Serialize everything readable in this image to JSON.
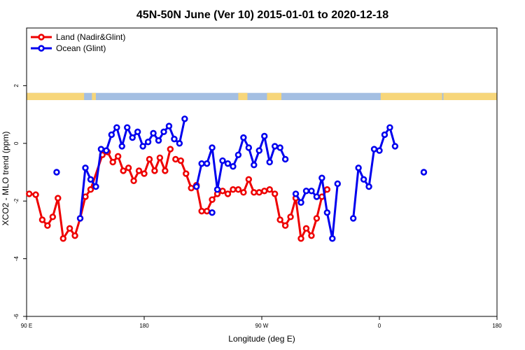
{
  "chart_data": {
    "type": "line",
    "title": "45N-50N June (Ver 10)   2015-01-01 to 2020-12-18",
    "xlabel": "Longitude (deg E)",
    "ylabel": "XCO2 - MLO trend (ppm)",
    "xlim": [
      90,
      450
    ],
    "ylim": [
      -6,
      4
    ],
    "x_ticks": [
      {
        "value": 90,
        "label": "90 E"
      },
      {
        "value": 180,
        "label": "180"
      },
      {
        "value": 270,
        "label": "90 W"
      },
      {
        "value": 360,
        "label": "0"
      },
      {
        "value": 450,
        "label": "180"
      }
    ],
    "x_tick_labels": [
      "90 E",
      "180",
      "90 W",
      "0",
      "180"
    ],
    "y_ticks": [
      -6,
      -4,
      -2,
      0,
      2
    ],
    "y_tick_labels": [
      "-6",
      "-4",
      "-2",
      "0",
      "2"
    ],
    "legend": {
      "position": "top-left",
      "entries": [
        "Land (Nadir&Glint)",
        "Ocean (Glint)"
      ]
    },
    "landmask": {
      "y_range": [
        1.5,
        1.75
      ],
      "land_color": "#f7d67a",
      "ocean_color": "#a4bfe2",
      "land_segments": [
        [
          90,
          134
        ],
        [
          140,
          143
        ],
        [
          252,
          259
        ],
        [
          274,
          285
        ],
        [
          361,
          408
        ],
        [
          409,
          451
        ]
      ]
    },
    "series": [
      {
        "name": "Land (Nadir&Glint)",
        "color": "#ee0000",
        "points": [
          [
            92,
            -1.75
          ],
          [
            97,
            -1.78
          ],
          [
            102,
            -2.65
          ],
          [
            106,
            -2.85
          ],
          [
            110,
            -2.55
          ],
          [
            114,
            -1.9
          ],
          [
            118,
            -3.3
          ],
          [
            123,
            -2.95
          ],
          [
            127,
            -3.2
          ],
          [
            131,
            -2.6
          ],
          [
            135,
            -1.85
          ],
          [
            139,
            -1.6
          ],
          [
            148,
            -0.4
          ],
          [
            152,
            -0.3
          ],
          [
            156,
            -0.65
          ],
          [
            160,
            -0.45
          ],
          [
            164,
            -0.95
          ],
          [
            168,
            -0.85
          ],
          [
            172,
            -1.3
          ],
          [
            176,
            -0.95
          ],
          [
            180,
            -1.05
          ],
          [
            184,
            -0.55
          ],
          [
            188,
            -0.95
          ],
          [
            192,
            -0.5
          ],
          [
            196,
            -0.95
          ],
          [
            200,
            -0.2
          ],
          [
            204,
            -0.55
          ],
          [
            208,
            -0.6
          ],
          [
            212,
            -1.05
          ],
          [
            216,
            -1.55
          ],
          [
            220,
            -1.45
          ],
          [
            224,
            -2.35
          ],
          [
            228,
            -2.35
          ],
          [
            232,
            -1.95
          ],
          [
            236,
            -1.75
          ],
          [
            240,
            -1.65
          ],
          [
            244,
            -1.75
          ],
          [
            248,
            -1.6
          ],
          [
            252,
            -1.6
          ],
          [
            256,
            -1.7
          ],
          [
            260,
            -1.25
          ],
          [
            264,
            -1.7
          ],
          [
            268,
            -1.7
          ],
          [
            272,
            -1.65
          ],
          [
            276,
            -1.6
          ],
          [
            280,
            -1.75
          ],
          [
            284,
            -2.65
          ],
          [
            288,
            -2.85
          ],
          [
            292,
            -2.55
          ],
          [
            296,
            -1.9
          ],
          [
            300,
            -3.3
          ],
          [
            304,
            -2.95
          ],
          [
            308,
            -3.2
          ],
          [
            312,
            -2.6
          ],
          [
            316,
            -1.85
          ],
          [
            320,
            -1.6
          ]
        ],
        "break_after": [
          19,
          25
        ]
      },
      {
        "name": "Ocean (Glint)",
        "color": "#0000ee",
        "points": [
          [
            131,
            -2.6
          ],
          [
            135,
            -0.85
          ],
          [
            139,
            -1.25
          ],
          [
            143,
            -1.5
          ],
          [
            147,
            -0.2
          ],
          [
            151,
            -0.25
          ],
          [
            155,
            0.3
          ],
          [
            159,
            0.55
          ],
          [
            163,
            -0.1
          ],
          [
            167,
            0.55
          ],
          [
            171,
            0.2
          ],
          [
            175,
            0.4
          ],
          [
            179,
            -0.1
          ],
          [
            183,
            0.05
          ],
          [
            187,
            0.35
          ],
          [
            191,
            0.1
          ],
          [
            195,
            0.4
          ],
          [
            199,
            0.6
          ],
          [
            203,
            0.15
          ],
          [
            207,
            0.0
          ],
          [
            211,
            0.85
          ],
          [
            220,
            -1.5
          ],
          [
            224,
            -0.7
          ],
          [
            228,
            -0.7
          ],
          [
            232,
            -0.15
          ],
          [
            236,
            -1.6
          ],
          [
            240,
            -0.6
          ],
          [
            244,
            -0.7
          ],
          [
            248,
            -0.8
          ],
          [
            252,
            -0.4
          ],
          [
            256,
            0.2
          ],
          [
            260,
            -0.15
          ],
          [
            264,
            -0.75
          ],
          [
            268,
            -0.25
          ],
          [
            272,
            0.25
          ],
          [
            276,
            -0.65
          ],
          [
            280,
            -0.1
          ],
          [
            284,
            -0.15
          ],
          [
            288,
            -0.55
          ],
          [
            296,
            -1.75
          ],
          [
            300,
            -2.05
          ],
          [
            304,
            -1.65
          ],
          [
            308,
            -1.65
          ],
          [
            312,
            -1.85
          ],
          [
            316,
            -1.2
          ],
          [
            320,
            -2.4
          ],
          [
            324,
            -3.3
          ],
          [
            328,
            -1.4
          ],
          [
            340,
            -2.6
          ],
          [
            344,
            -0.85
          ],
          [
            348,
            -1.25
          ],
          [
            352,
            -1.5
          ],
          [
            356,
            -0.2
          ],
          [
            360,
            -0.25
          ],
          [
            364,
            0.3
          ],
          [
            368,
            0.55
          ],
          [
            372,
            -0.1
          ]
        ],
        "break_after": [
          20,
          38,
          47
        ]
      }
    ],
    "extra_points": [
      {
        "series": 1,
        "x": 113,
        "y": -1.0
      },
      {
        "series": 1,
        "x": 232,
        "y": -2.4
      },
      {
        "series": 1,
        "x": 394,
        "y": -1.0
      }
    ]
  }
}
